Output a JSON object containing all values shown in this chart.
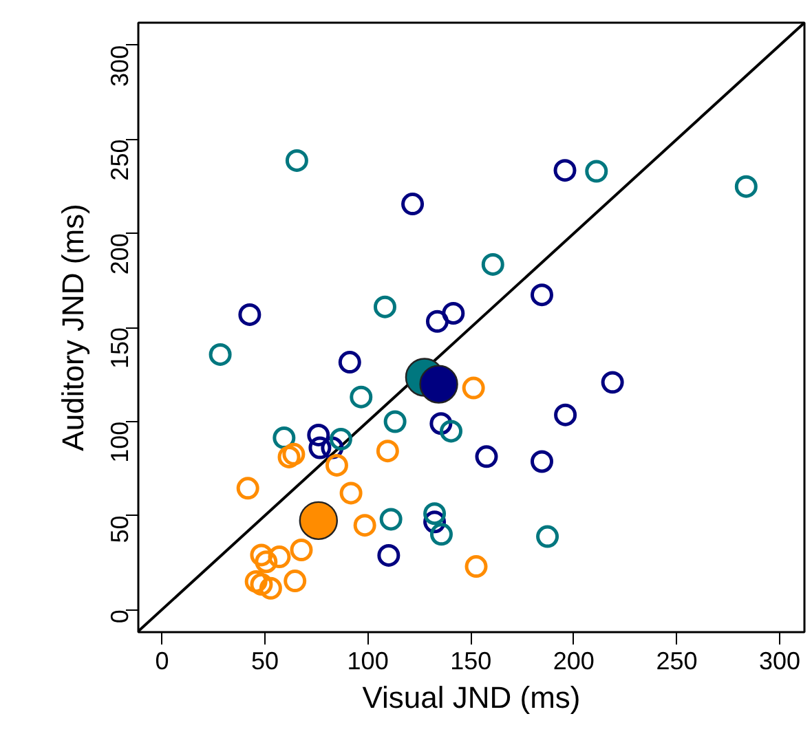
{
  "chart_data": {
    "type": "scatter",
    "xlabel": "Visual JND (ms)",
    "ylabel": "Auditory JND (ms)",
    "xlim": [
      -11.5,
      312
    ],
    "ylim": [
      -12,
      312
    ],
    "xticks": [
      0,
      50,
      100,
      150,
      200,
      250,
      300
    ],
    "yticks": [
      0,
      50,
      100,
      150,
      200,
      250,
      300
    ],
    "grid": false,
    "marker": "circle",
    "series": [
      {
        "type": "line",
        "color": "#000000",
        "x": [
          -11.5,
          312
        ],
        "values": [
          -11.5,
          312
        ],
        "line_style": "solid",
        "marker": "none"
      },
      {
        "color": "#000080",
        "x": [
          42.6,
          121.7,
          133.7,
          141.5,
          91.2,
          135.5,
          76,
          76.7,
          82.7,
          132.4,
          110.1,
          157.6,
          195.7,
          184.5,
          218.8,
          195.9,
          184.5
        ],
        "values": [
          156.8,
          215.6,
          153.2,
          157.5,
          131.5,
          98.9,
          92.8,
          86,
          86,
          46.6,
          28.8,
          81.3,
          233.5,
          167.3,
          120.8,
          103.5,
          78.7
        ]
      },
      {
        "color": "#00777f",
        "x": [
          65.5,
          28.3,
          108.3,
          96.7,
          113.2,
          140.4,
          59.3,
          86.9,
          111.2,
          132.4,
          135.7,
          211,
          283.7,
          160.7,
          187.2
        ],
        "values": [
          238.7,
          135.6,
          160.9,
          113,
          99.9,
          94.8,
          91.3,
          90.6,
          48,
          51,
          40,
          233,
          224.9,
          183.5,
          38.8
        ]
      },
      {
        "color": "#ff8c00",
        "x": [
          151.3,
          61.7,
          64,
          109.6,
          84.9,
          41.7,
          91.8,
          98.5,
          48.3,
          50.6,
          57,
          67.7,
          45.7,
          48.3,
          52.8,
          64.6,
          152.6
        ],
        "values": [
          117.8,
          81.1,
          82.6,
          84.3,
          76.7,
          64.5,
          61.9,
          44.8,
          29,
          25.4,
          28,
          31.7,
          14.9,
          13.4,
          11.3,
          15.2,
          22.9
        ]
      },
      {
        "type": "bubble",
        "color": "#00777f",
        "x": [
          127.5
        ],
        "values": [
          123.5
        ],
        "sizes": [
          1
        ]
      },
      {
        "type": "bubble",
        "color": "#000080",
        "x": [
          134.4
        ],
        "values": [
          119.8
        ],
        "sizes": [
          1
        ]
      },
      {
        "type": "bubble",
        "color": "#ff8c00",
        "x": [
          76
        ],
        "values": [
          47.3
        ],
        "sizes": [
          1
        ]
      }
    ]
  }
}
